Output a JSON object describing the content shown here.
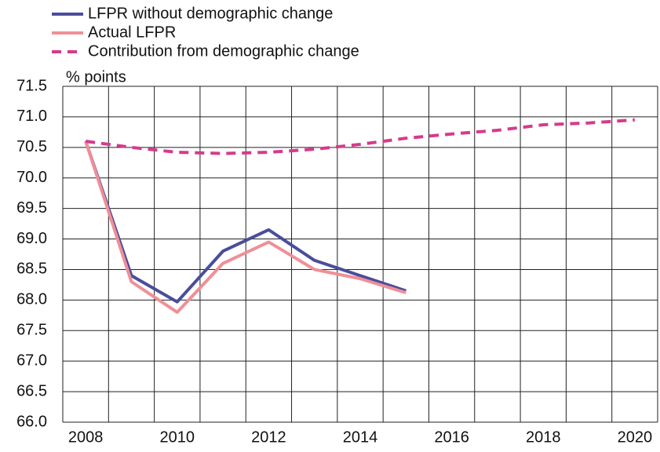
{
  "chart_data": {
    "type": "line",
    "y_unit_label": "% points",
    "categories": [
      "2008",
      null,
      "2010",
      null,
      "2012",
      null,
      "2014",
      null,
      "2016",
      null,
      "2018",
      null,
      "2020"
    ],
    "series": [
      {
        "name": "LFPR without demographic change",
        "color": "#4a4d9c",
        "dash": false,
        "values": [
          70.6,
          68.4,
          67.97,
          68.8,
          69.15,
          68.65,
          68.4,
          68.15,
          null,
          null,
          null,
          null,
          null
        ]
      },
      {
        "name": "Actual LFPR",
        "color": "#ef8f97",
        "dash": false,
        "values": [
          70.6,
          68.3,
          67.8,
          68.6,
          68.95,
          68.5,
          68.35,
          68.12,
          null,
          null,
          null,
          null,
          null
        ]
      },
      {
        "name": "Contribution from demographic change",
        "color": "#d63a8c",
        "dash": true,
        "values": [
          70.6,
          70.5,
          70.42,
          70.4,
          70.42,
          70.47,
          70.55,
          70.65,
          70.72,
          70.78,
          70.87,
          70.9,
          70.95
        ]
      }
    ],
    "ylim": [
      66,
      71.5
    ],
    "yticks": [
      {
        "value": 66,
        "label": "66.0"
      },
      66.5,
      {
        "value": 67,
        "label": "67.0"
      },
      67.5,
      {
        "value": 68,
        "label": "68.0"
      },
      68.5,
      {
        "value": 69,
        "label": "69.0"
      },
      69.5,
      {
        "value": 70,
        "label": "70.0"
      },
      70.5,
      {
        "value": 71,
        "label": "71.0"
      },
      71.5
    ],
    "grid": true
  }
}
